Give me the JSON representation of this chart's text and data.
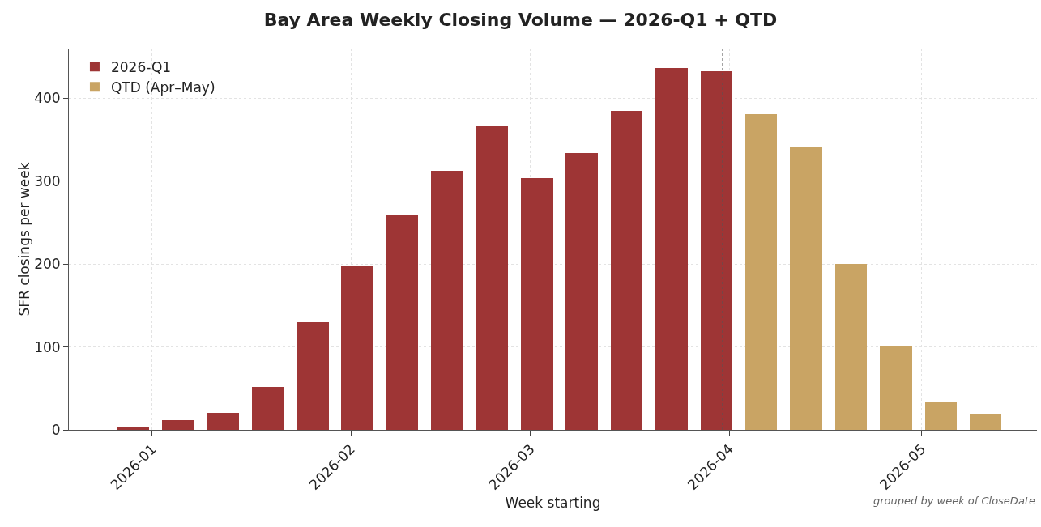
{
  "chart_data": {
    "type": "bar",
    "title": "Bay Area Weekly Closing Volume — 2026-Q1 + QTD",
    "xlabel": "Week starting",
    "ylabel": "SFR closings per week",
    "series": [
      {
        "name": "2026-Q1",
        "color": "#9e3535",
        "x": [
          "2025-12-29",
          "2026-01-05",
          "2026-01-12",
          "2026-01-19",
          "2026-01-26",
          "2026-02-02",
          "2026-02-09",
          "2026-02-16",
          "2026-02-23",
          "2026-03-02",
          "2026-03-09",
          "2026-03-16",
          "2026-03-23",
          "2026-03-30"
        ],
        "values": [
          3,
          12,
          21,
          52,
          130,
          198,
          259,
          313,
          366,
          304,
          334,
          385,
          437,
          433
        ]
      },
      {
        "name": "QTD (Apr–May)",
        "color": "#c9a464",
        "x": [
          "2026-04-06",
          "2026-04-13",
          "2026-04-20",
          "2026-04-27",
          "2026-05-04",
          "2026-05-11"
        ],
        "values": [
          381,
          342,
          200,
          102,
          34,
          20
        ]
      }
    ],
    "xlim": [
      "2025-12-19",
      "2026-05-19"
    ],
    "xticks": [
      {
        "value": "2026-01-01",
        "label": "2026-01"
      },
      {
        "value": "2026-02-01",
        "label": "2026-02"
      },
      {
        "value": "2026-03-01",
        "label": "2026-03"
      },
      {
        "value": "2026-04-01",
        "label": "2026-04"
      },
      {
        "value": "2026-05-01",
        "label": "2026-05"
      }
    ],
    "ylim": [
      0,
      460
    ],
    "yticks": [
      0,
      100,
      200,
      300,
      400
    ],
    "ref_lines": [
      {
        "axis": "x",
        "value": "2026-03-31",
        "color": "#555555",
        "line_style": "dotted"
      }
    ],
    "grid": true,
    "legend": "top left",
    "annotations": [
      "grouped by week of CloseDate"
    ]
  }
}
